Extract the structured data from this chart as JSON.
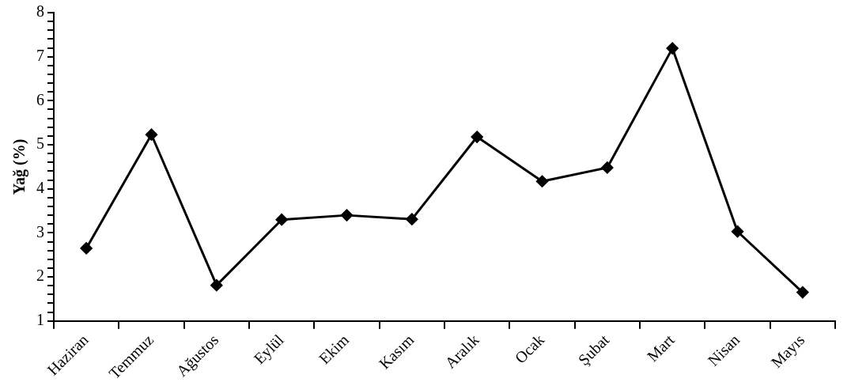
{
  "chart_data": {
    "type": "line",
    "ylabel": "Yağ (%)",
    "categories": [
      "Haziran",
      "Temmuz",
      "Ağustos",
      "Eylül",
      "Ekim",
      "Kasım",
      "Aralık",
      "Ocak",
      "Şubat",
      "Mart",
      "Nisan",
      "Mayıs"
    ],
    "series": [
      {
        "color": "#000000",
        "values": [
          2.65,
          5.23,
          1.81,
          3.3,
          3.4,
          3.31,
          5.18,
          4.17,
          4.48,
          7.19,
          3.03,
          1.65
        ]
      }
    ],
    "ylim": [
      1,
      8
    ],
    "yticks": [
      1,
      {
        "value": 1.2,
        "label": null
      },
      {
        "value": 1.4,
        "label": null
      },
      {
        "value": 1.6,
        "label": null
      },
      {
        "value": 1.8,
        "label": null
      },
      2,
      {
        "value": 2.2,
        "label": null
      },
      {
        "value": 2.4,
        "label": null
      },
      {
        "value": 2.6,
        "label": null
      },
      {
        "value": 2.8,
        "label": null
      },
      3,
      {
        "value": 3.2,
        "label": null
      },
      {
        "value": 3.4,
        "label": null
      },
      {
        "value": 3.6,
        "label": null
      },
      {
        "value": 3.8,
        "label": null
      },
      4,
      {
        "value": 4.2,
        "label": null
      },
      {
        "value": 4.4,
        "label": null
      },
      {
        "value": 4.6,
        "label": null
      },
      {
        "value": 4.8,
        "label": null
      },
      5,
      {
        "value": 5.2,
        "label": null
      },
      {
        "value": 5.4,
        "label": null
      },
      {
        "value": 5.6,
        "label": null
      },
      {
        "value": 5.8,
        "label": null
      },
      6,
      {
        "value": 6.2,
        "label": null
      },
      {
        "value": 6.4,
        "label": null
      },
      {
        "value": 6.6,
        "label": null
      },
      {
        "value": 6.8,
        "label": null
      },
      7,
      {
        "value": 7.2,
        "label": null
      },
      {
        "value": 7.4,
        "label": null
      },
      {
        "value": 7.6,
        "label": null
      },
      {
        "value": 7.8,
        "label": null
      },
      8
    ],
    "grid": false,
    "legend": false,
    "marker": "diamond",
    "line_style": "solid"
  }
}
